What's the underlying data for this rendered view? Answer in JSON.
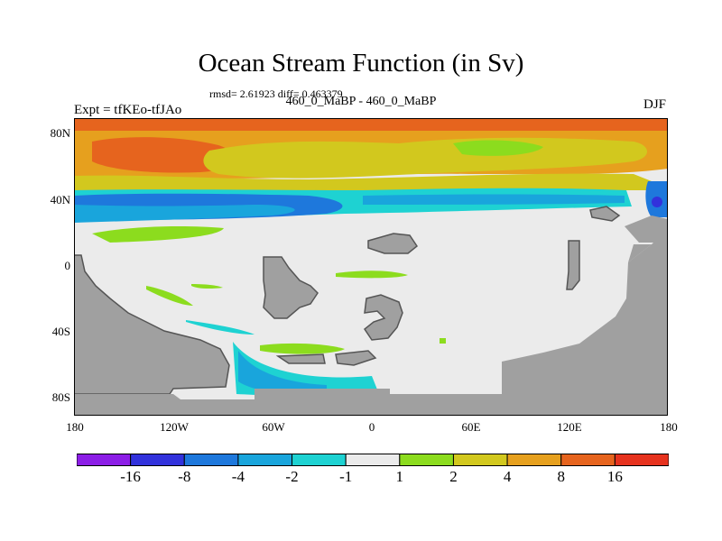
{
  "title": "Ocean Stream Function (in Sv)",
  "stats": "rmsd= 2.61923 diff= 0.463379",
  "subtitle": "460_0_MaBP - 460_0_MaBP",
  "left_label": "Expt = tfKEo-tfJAo",
  "right_label": "DJF",
  "lat_ticks": [
    "80N",
    "40N",
    "0",
    "40S",
    "80S"
  ],
  "lon_ticks": [
    "180",
    "120W",
    "60W",
    "0",
    "60E",
    "120E",
    "180"
  ],
  "colorbar": {
    "labels": [
      "-16",
      "-8",
      "-4",
      "-2",
      "-1",
      "1",
      "2",
      "4",
      "8",
      "16"
    ],
    "colors": [
      "#8c1ee6",
      "#3232dc",
      "#1e78dc",
      "#19a5dc",
      "#1ed2d2",
      "#ebebeb",
      "#8cdc1e",
      "#d2c81e",
      "#e6a01e",
      "#e6641e",
      "#e6321e"
    ]
  },
  "map_colors": {
    "land": "#a0a0a0",
    "coast": "#555555",
    "neutral": "#ebebeb"
  }
}
